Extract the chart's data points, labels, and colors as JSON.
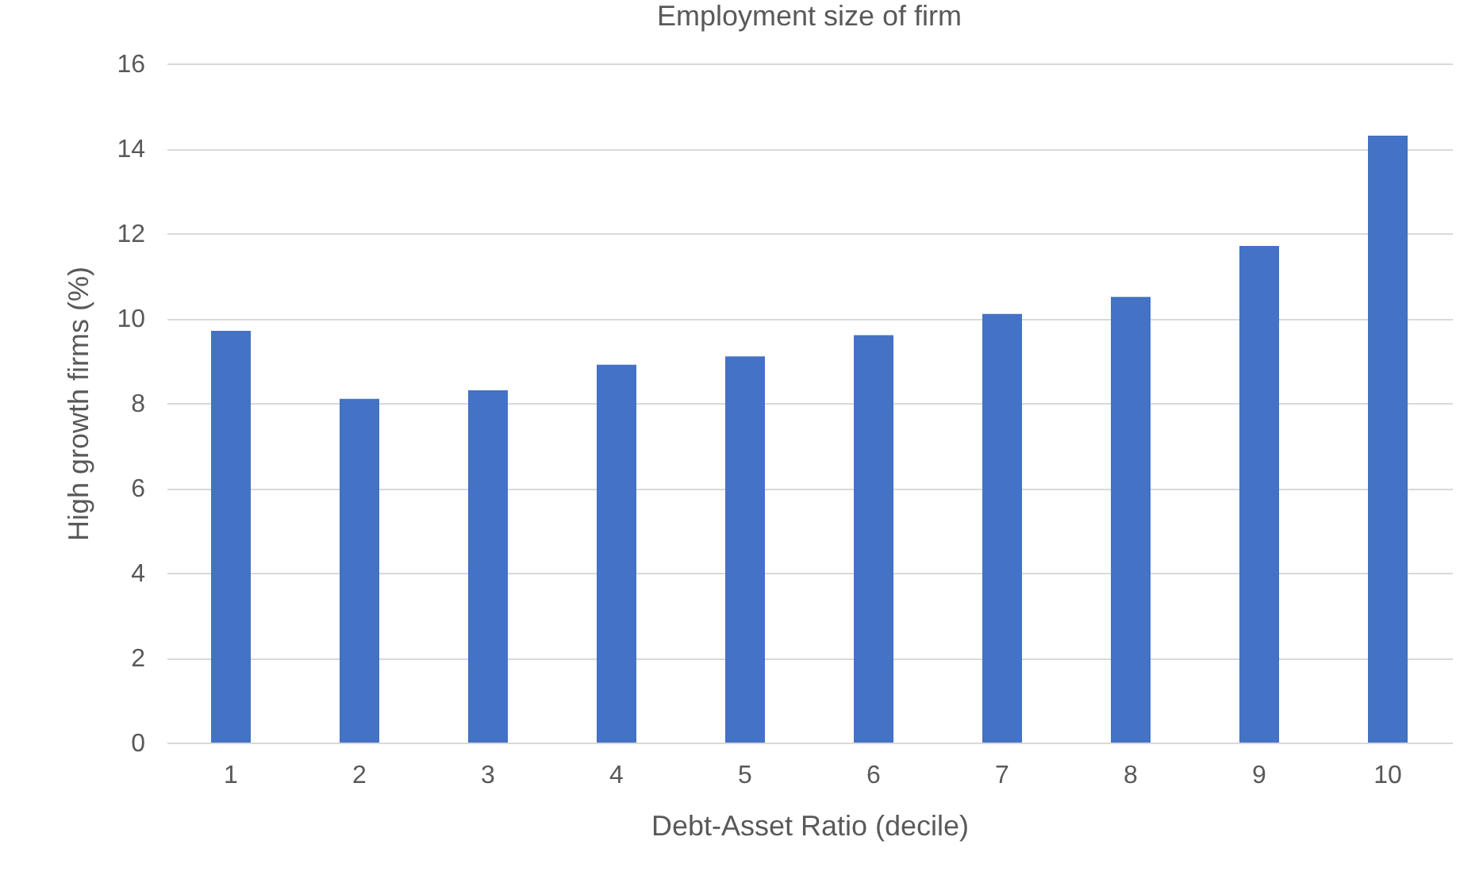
{
  "chart_data": {
    "type": "bar",
    "title": "Employment size of firm",
    "xlabel": "Debt-Asset Ratio (decile)",
    "ylabel": "High growth firms (%)",
    "categories": [
      "1",
      "2",
      "3",
      "4",
      "5",
      "6",
      "7",
      "8",
      "9",
      "10"
    ],
    "values": [
      9.7,
      8.1,
      8.3,
      8.9,
      9.1,
      9.6,
      10.1,
      10.5,
      11.7,
      14.3
    ],
    "color": "#4472c4",
    "ylim": [
      0,
      16
    ],
    "yticks": [
      0,
      2,
      4,
      6,
      8,
      10,
      12,
      14,
      16
    ],
    "grid": "y"
  }
}
